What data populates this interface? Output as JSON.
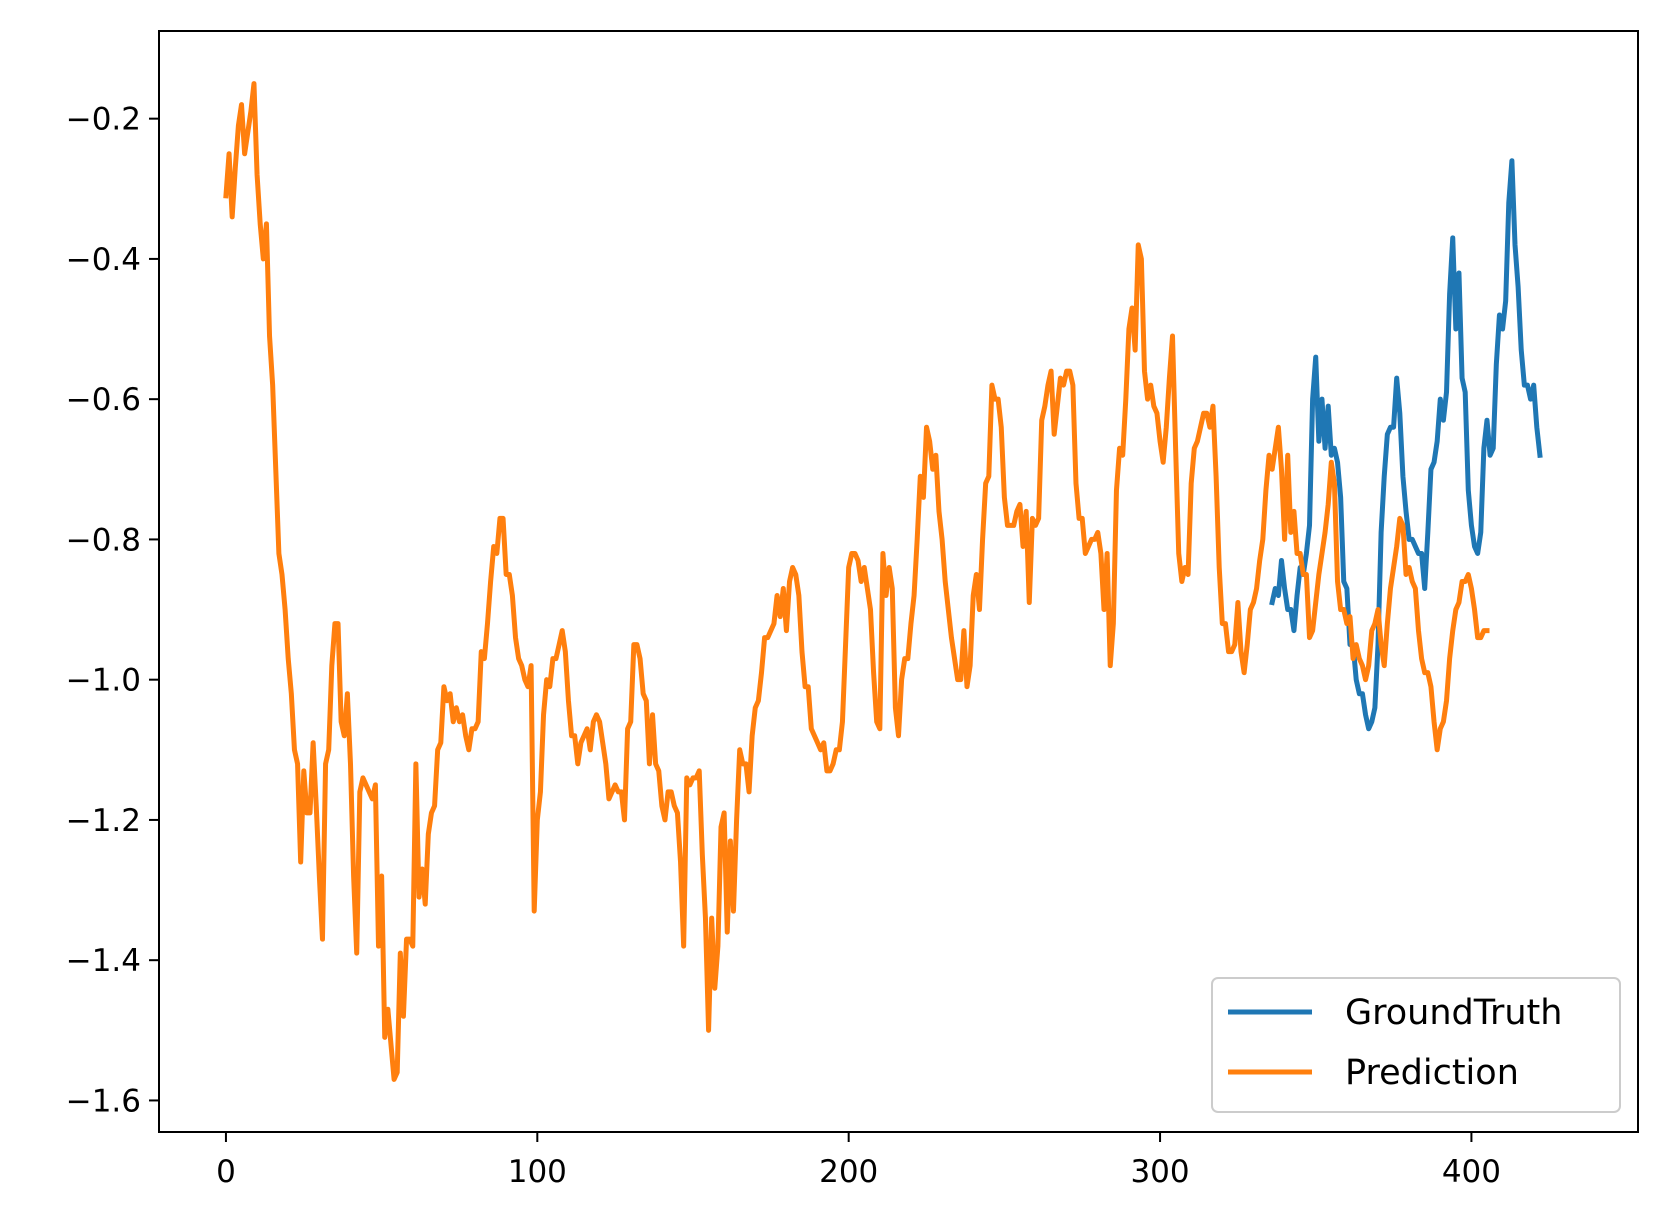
{
  "chart_data": {
    "type": "line",
    "title": "",
    "xlabel": "",
    "ylabel": "",
    "xlim": [
      -21.5,
      453.5
    ],
    "ylim": [
      -1.645,
      -0.075
    ],
    "xticks": [
      0,
      100,
      200,
      300,
      400
    ],
    "yticks": [
      -0.2,
      -0.4,
      -0.6,
      -0.8,
      -1.0,
      -1.2,
      -1.4,
      -1.6
    ],
    "xtick_labels": [
      "0",
      "100",
      "200",
      "300",
      "400"
    ],
    "ytick_labels": [
      "−0.2",
      "−0.4",
      "−0.6",
      "−0.8",
      "−1.0",
      "−1.2",
      "−1.4",
      "−1.6"
    ],
    "grid": false,
    "legend_position": "lower-right",
    "series": [
      {
        "name": "GroundTruth",
        "color": "#1f77b4",
        "x_start": 336,
        "values": [
          -0.89,
          -0.87,
          -0.88,
          -0.83,
          -0.87,
          -0.9,
          -0.9,
          -0.93,
          -0.88,
          -0.84,
          -0.85,
          -0.82,
          -0.78,
          -0.6,
          -0.54,
          -0.66,
          -0.6,
          -0.67,
          -0.61,
          -0.68,
          -0.67,
          -0.69,
          -0.74,
          -0.86,
          -0.87,
          -0.95,
          -0.95,
          -1.0,
          -1.02,
          -1.02,
          -1.05,
          -1.07,
          -1.06,
          -1.04,
          -0.95,
          -0.79,
          -0.71,
          -0.65,
          -0.64,
          -0.64,
          -0.57,
          -0.62,
          -0.71,
          -0.76,
          -0.8,
          -0.8,
          -0.81,
          -0.82,
          -0.82,
          -0.87,
          -0.79,
          -0.7,
          -0.69,
          -0.66,
          -0.6,
          -0.63,
          -0.59,
          -0.45,
          -0.37,
          -0.5,
          -0.42,
          -0.57,
          -0.59,
          -0.73,
          -0.78,
          -0.81,
          -0.82,
          -0.79,
          -0.67,
          -0.63,
          -0.68,
          -0.67,
          -0.55,
          -0.48,
          -0.5,
          -0.46,
          -0.32,
          -0.26,
          -0.38,
          -0.44,
          -0.53,
          -0.58,
          -0.58,
          -0.6,
          -0.58,
          -0.64,
          -0.68
        ]
      },
      {
        "name": "Prediction",
        "color": "#ff7f0e",
        "x_start": 0,
        "values": [
          -0.31,
          -0.25,
          -0.34,
          -0.27,
          -0.21,
          -0.18,
          -0.25,
          -0.22,
          -0.19,
          -0.15,
          -0.28,
          -0.35,
          -0.4,
          -0.35,
          -0.51,
          -0.58,
          -0.7,
          -0.82,
          -0.85,
          -0.9,
          -0.97,
          -1.02,
          -1.1,
          -1.12,
          -1.26,
          -1.13,
          -1.19,
          -1.19,
          -1.09,
          -1.18,
          -1.28,
          -1.37,
          -1.12,
          -1.1,
          -0.98,
          -0.92,
          -0.92,
          -1.06,
          -1.08,
          -1.02,
          -1.12,
          -1.28,
          -1.39,
          -1.16,
          -1.14,
          -1.15,
          -1.16,
          -1.17,
          -1.15,
          -1.38,
          -1.28,
          -1.51,
          -1.47,
          -1.52,
          -1.57,
          -1.56,
          -1.39,
          -1.48,
          -1.37,
          -1.37,
          -1.38,
          -1.12,
          -1.31,
          -1.27,
          -1.32,
          -1.22,
          -1.19,
          -1.18,
          -1.1,
          -1.09,
          -1.01,
          -1.03,
          -1.02,
          -1.06,
          -1.04,
          -1.06,
          -1.05,
          -1.08,
          -1.1,
          -1.07,
          -1.07,
          -1.06,
          -0.96,
          -0.97,
          -0.92,
          -0.86,
          -0.81,
          -0.82,
          -0.77,
          -0.77,
          -0.85,
          -0.85,
          -0.88,
          -0.94,
          -0.97,
          -0.98,
          -1.0,
          -1.01,
          -0.98,
          -1.33,
          -1.2,
          -1.16,
          -1.05,
          -1.0,
          -1.01,
          -0.97,
          -0.97,
          -0.95,
          -0.93,
          -0.96,
          -1.03,
          -1.08,
          -1.08,
          -1.12,
          -1.09,
          -1.08,
          -1.07,
          -1.1,
          -1.06,
          -1.05,
          -1.06,
          -1.09,
          -1.12,
          -1.17,
          -1.16,
          -1.15,
          -1.16,
          -1.16,
          -1.2,
          -1.07,
          -1.06,
          -0.95,
          -0.95,
          -0.97,
          -1.02,
          -1.03,
          -1.12,
          -1.05,
          -1.12,
          -1.13,
          -1.18,
          -1.2,
          -1.16,
          -1.16,
          -1.18,
          -1.19,
          -1.26,
          -1.38,
          -1.14,
          -1.15,
          -1.14,
          -1.14,
          -1.13,
          -1.25,
          -1.34,
          -1.5,
          -1.34,
          -1.44,
          -1.38,
          -1.21,
          -1.19,
          -1.36,
          -1.23,
          -1.33,
          -1.2,
          -1.1,
          -1.12,
          -1.12,
          -1.16,
          -1.08,
          -1.04,
          -1.03,
          -0.99,
          -0.94,
          -0.94,
          -0.93,
          -0.92,
          -0.88,
          -0.91,
          -0.87,
          -0.93,
          -0.86,
          -0.84,
          -0.85,
          -0.88,
          -0.96,
          -1.01,
          -1.01,
          -1.07,
          -1.08,
          -1.09,
          -1.1,
          -1.09,
          -1.13,
          -1.13,
          -1.12,
          -1.1,
          -1.1,
          -1.06,
          -0.95,
          -0.84,
          -0.82,
          -0.82,
          -0.83,
          -0.86,
          -0.84,
          -0.87,
          -0.9,
          -0.99,
          -1.06,
          -1.07,
          -0.82,
          -0.88,
          -0.84,
          -0.87,
          -1.04,
          -1.08,
          -1.0,
          -0.97,
          -0.97,
          -0.92,
          -0.88,
          -0.8,
          -0.71,
          -0.74,
          -0.64,
          -0.66,
          -0.7,
          -0.68,
          -0.76,
          -0.8,
          -0.86,
          -0.9,
          -0.94,
          -0.97,
          -1.0,
          -1.0,
          -0.93,
          -1.01,
          -0.98,
          -0.88,
          -0.85,
          -0.9,
          -0.8,
          -0.72,
          -0.71,
          -0.58,
          -0.6,
          -0.6,
          -0.64,
          -0.74,
          -0.78,
          -0.78,
          -0.78,
          -0.76,
          -0.75,
          -0.81,
          -0.76,
          -0.89,
          -0.77,
          -0.78,
          -0.77,
          -0.63,
          -0.61,
          -0.58,
          -0.56,
          -0.65,
          -0.61,
          -0.57,
          -0.58,
          -0.56,
          -0.56,
          -0.58,
          -0.72,
          -0.77,
          -0.77,
          -0.82,
          -0.81,
          -0.8,
          -0.8,
          -0.79,
          -0.82,
          -0.9,
          -0.82,
          -0.98,
          -0.92,
          -0.73,
          -0.67,
          -0.68,
          -0.6,
          -0.5,
          -0.47,
          -0.53,
          -0.38,
          -0.4,
          -0.56,
          -0.6,
          -0.58,
          -0.61,
          -0.62,
          -0.66,
          -0.69,
          -0.64,
          -0.57,
          -0.51,
          -0.67,
          -0.82,
          -0.86,
          -0.84,
          -0.85,
          -0.72,
          -0.67,
          -0.66,
          -0.64,
          -0.62,
          -0.62,
          -0.64,
          -0.61,
          -0.71,
          -0.84,
          -0.92,
          -0.92,
          -0.96,
          -0.96,
          -0.95,
          -0.89,
          -0.96,
          -0.99,
          -0.95,
          -0.9,
          -0.89,
          -0.87,
          -0.83,
          -0.8,
          -0.73,
          -0.68,
          -0.7,
          -0.67,
          -0.64,
          -0.7,
          -0.8,
          -0.68,
          -0.79,
          -0.76,
          -0.82,
          -0.82,
          -0.85,
          -0.85,
          -0.94,
          -0.93,
          -0.89,
          -0.85,
          -0.82,
          -0.79,
          -0.75,
          -0.69,
          -0.72,
          -0.86,
          -0.9,
          -0.9,
          -0.92,
          -0.91,
          -0.97,
          -0.95,
          -0.97,
          -0.98,
          -1.0,
          -0.98,
          -0.93,
          -0.92,
          -0.9,
          -0.95,
          -0.98,
          -0.92,
          -0.87,
          -0.84,
          -0.81,
          -0.77,
          -0.78,
          -0.85,
          -0.84,
          -0.86,
          -0.87,
          -0.93,
          -0.97,
          -0.99,
          -0.99,
          -1.01,
          -1.06,
          -1.1,
          -1.07,
          -1.06,
          -1.03,
          -0.97,
          -0.93,
          -0.9,
          -0.89,
          -0.86,
          -0.86,
          -0.85,
          -0.87,
          -0.9,
          -0.94,
          -0.94,
          -0.93,
          -0.93
        ]
      }
    ]
  }
}
